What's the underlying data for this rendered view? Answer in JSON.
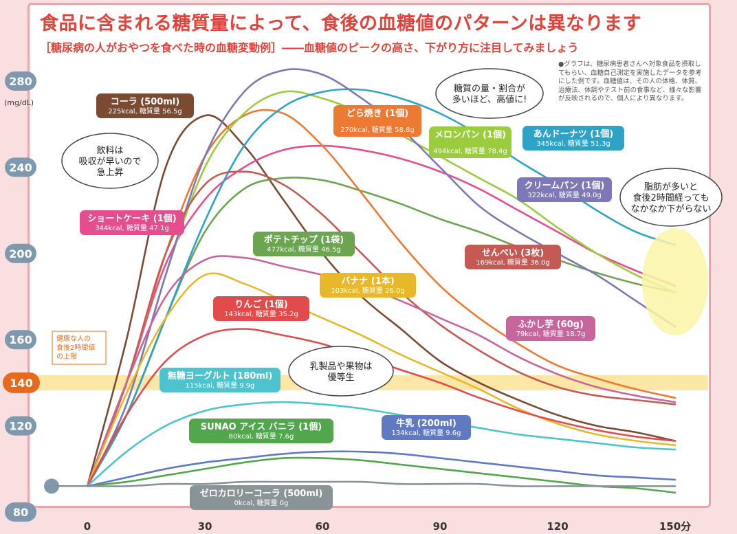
{
  "header": {
    "title": "食品に含まれる糖質量によって、食後の血糖値のパターンは異なります",
    "subtitle": "［糖尿病の人がおやつを食べた時の血糖変動例］――血糖値のピークの高さ、下がり方に注目してみましょう",
    "note": "●グラフは、糖尿病患者さんへ対象食品を摂取してもらい、血糖自己測定を実施したデータを参考にした例です。血糖値は、その人の体格、体質、治療法、体調やテスト前の食事など、様々な影響が反映されるので、個人により異なります。"
  },
  "chart_data": {
    "type": "line",
    "ylabel": "(mg/dL)",
    "y_ticks": [
      "80",
      "120",
      "160",
      "200",
      "240",
      "280"
    ],
    "x_ticks": [
      "0",
      "30",
      "60",
      "90",
      "120",
      "150分"
    ],
    "xlim": [
      0,
      150
    ],
    "ylim": [
      80,
      280
    ],
    "x": [
      0,
      10,
      20,
      30,
      40,
      50,
      60,
      70,
      80,
      90,
      100,
      110,
      120,
      130,
      140,
      150
    ],
    "baseline_start": 92,
    "reference": {
      "value": 140,
      "label": "140",
      "caption": [
        "健康な人の",
        "食後2時間値",
        "の上限"
      ]
    },
    "series": [
      {
        "name": "コーラ (500ml)",
        "info": "225kcal, 糖質量 56.5g",
        "color": "#7b4a32",
        "values": [
          92,
          160,
          240,
          264,
          250,
          225,
          200,
          180,
          165,
          150,
          140,
          132,
          125,
          120,
          117,
          113
        ]
      },
      {
        "name": "ショートケーキ (1個)",
        "info": "344kcal, 糖質量 47.1g",
        "color": "#e64d8e",
        "values": [
          92,
          140,
          195,
          225,
          240,
          248,
          250,
          248,
          244,
          238,
          230,
          220,
          210,
          200,
          192,
          185
        ]
      },
      {
        "name": "ポテトチップ (1袋)",
        "info": "477kcal, 糖質量 46.5g",
        "color": "#6ba550",
        "values": [
          92,
          125,
          170,
          210,
          230,
          235,
          234,
          229,
          223,
          216,
          210,
          203,
          197,
          191,
          186,
          182
        ]
      },
      {
        "name": "どら焼き (1個)",
        "info": "270kcal, 糖質量 58.8g",
        "color": "#ec7a33",
        "values": [
          92,
          140,
          200,
          245,
          264,
          265,
          250,
          228,
          205,
          185,
          170,
          158,
          148,
          142,
          137,
          133
        ]
      },
      {
        "name": "メロンパン (1個)",
        "info": "494kcal, 糖質量 78.4g",
        "color": "#9bcc3e",
        "values": [
          92,
          130,
          190,
          240,
          265,
          275,
          272,
          265,
          255,
          245,
          235,
          225,
          212,
          200,
          190,
          182
        ]
      },
      {
        "name": "あんドーナツ (1個)",
        "info": "345kcal, 糖質量 51.3g",
        "color": "#2ea3c6",
        "values": [
          92,
          125,
          170,
          215,
          250,
          268,
          275,
          276,
          272,
          265,
          255,
          243,
          232,
          220,
          210,
          204
        ]
      },
      {
        "name": "クリームパン (1個)",
        "info": "322kcal, 糖質量 49.0g",
        "color": "#7e78b7",
        "values": [
          92,
          130,
          190,
          245,
          275,
          285,
          283,
          272,
          258,
          240,
          222,
          210,
          200,
          190,
          178,
          166
        ]
      },
      {
        "name": "せんべい (3枚)",
        "info": "169kcal, 糖質量 36.0g",
        "color": "#c55a54",
        "values": [
          92,
          140,
          200,
          232,
          238,
          232,
          218,
          200,
          182,
          167,
          155,
          145,
          138,
          134,
          132,
          130
        ]
      },
      {
        "name": "ふかし芋 (60g)",
        "info": "79kcal, 糖質量 18.7g",
        "color": "#c7659e",
        "values": [
          92,
          140,
          180,
          197,
          198,
          194,
          190,
          185,
          178,
          170,
          162,
          152,
          144,
          138,
          134,
          131
        ]
      },
      {
        "name": "バナナ (1本)",
        "info": "103kcal, 糖質量 26.0g",
        "color": "#e7b92a",
        "values": [
          92,
          135,
          170,
          190,
          186,
          178,
          170,
          162,
          153,
          145,
          137,
          128,
          121,
          116,
          113,
          111
        ]
      },
      {
        "name": "りんご (1個)",
        "info": "143kcal, 糖質量 35.2g",
        "color": "#e24b4b",
        "values": [
          92,
          125,
          150,
          162,
          165,
          162,
          158,
          152,
          146,
          140,
          133,
          127,
          122,
          118,
          115,
          113
        ]
      },
      {
        "name": "無糖ヨーグルト (180ml)",
        "info": "115kcal, 糖質量 9.9g",
        "color": "#4ec3cd",
        "values": [
          92,
          108,
          120,
          127,
          130,
          131,
          130,
          128,
          125,
          122,
          119,
          116,
          114,
          112,
          110,
          109
        ]
      },
      {
        "name": "牛乳 (200ml)",
        "info": "134kcal, 糖質量 9.6g",
        "color": "#5f79c2",
        "values": [
          92,
          96,
          100,
          103,
          105,
          107,
          108,
          108,
          107,
          105,
          103,
          101,
          99,
          97,
          96,
          95
        ]
      },
      {
        "name": "SUNAO アイス バニラ (1個)",
        "info": "80kcal, 糖質量 7.6g",
        "color": "#52a64c",
        "values": [
          92,
          94,
          97,
          100,
          103,
          105,
          105,
          104,
          102,
          100,
          98,
          96,
          94,
          92,
          91,
          89
        ]
      },
      {
        "name": "ゼロカロリーコーラ (500ml)",
        "info": "0kcal, 糖質量 0g",
        "color": "#8a9497",
        "values": [
          92,
          92,
          93,
          93,
          94,
          94,
          94,
          94,
          93,
          93,
          93,
          92,
          92,
          92,
          92,
          92
        ]
      }
    ],
    "annotations": [
      {
        "lines": [
          "飲料は",
          "吸収が早いので",
          "急上昇"
        ]
      },
      {
        "lines": [
          "糖質の量・割合が",
          "多いほど、高値に!"
        ]
      },
      {
        "lines": [
          "脂肪が多いと",
          "食後2時間経っても",
          "なかなか下がらない"
        ]
      },
      {
        "lines": [
          "乳製品や果物は",
          "優等生"
        ]
      }
    ]
  }
}
